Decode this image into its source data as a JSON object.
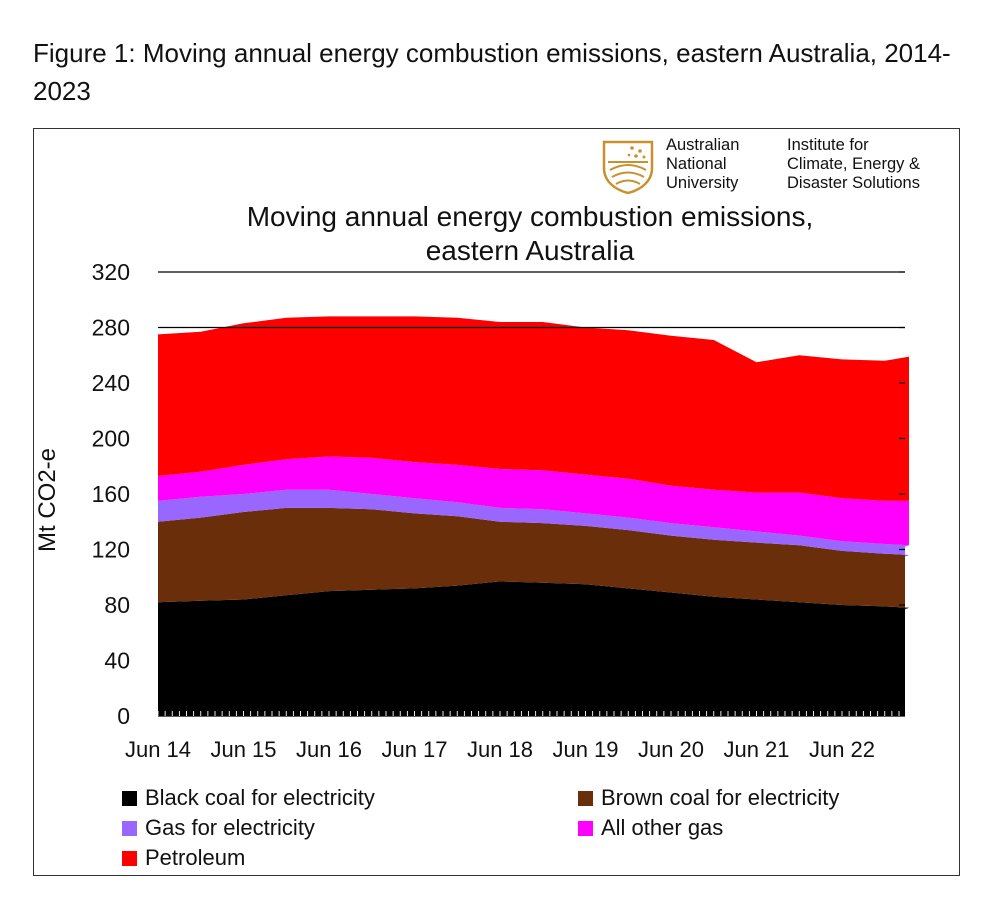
{
  "figure_caption": "Figure 1: Moving annual energy combustion emissions, eastern Australia, 2014-2023",
  "logos": {
    "anu_name": [
      "Australian",
      "National",
      "University"
    ],
    "icds_name": [
      "Institute for",
      "Climate, Energy &",
      "Disaster Solutions"
    ]
  },
  "chart_data": {
    "type": "area",
    "stacked": true,
    "title_lines": [
      "Moving annual energy combustion emissions,",
      "eastern Australia"
    ],
    "ylabel": "Mt CO2-e",
    "ylim": [
      0,
      320
    ],
    "yticks": [
      0,
      40,
      80,
      120,
      160,
      200,
      240,
      280,
      320
    ],
    "xticks": [
      "Jun 14",
      "Jun 15",
      "Jun 16",
      "Jun 17",
      "Jun 18",
      "Jun 19",
      "Jun 20",
      "Jun 21",
      "Jun 22"
    ],
    "grid_major_y": [
      280,
      320
    ],
    "legend_placement": "bottom",
    "x": [
      "Jun 14",
      "Dec 14",
      "Jun 15",
      "Dec 15",
      "Jun 16",
      "Dec 16",
      "Jun 17",
      "Dec 17",
      "Jun 18",
      "Dec 18",
      "Jun 19",
      "Dec 19",
      "Jun 20",
      "Dec 20",
      "Jun 21",
      "Dec 21",
      "Jun 22",
      "Dec 22",
      "Feb 23",
      "Mar 23"
    ],
    "series": [
      {
        "name": "Black coal for electricity",
        "color": "#000000",
        "values": [
          82,
          83,
          84,
          87,
          90,
          91,
          92,
          94,
          97,
          96,
          95,
          92,
          89,
          86,
          84,
          82,
          80,
          79,
          78,
          77
        ]
      },
      {
        "name": "Brown coal for electricity",
        "color": "#6b2e0a",
        "values": [
          58,
          60,
          63,
          63,
          60,
          58,
          54,
          50,
          43,
          43,
          42,
          42,
          41,
          41,
          41,
          41,
          39,
          38,
          38,
          38
        ]
      },
      {
        "name": "Gas for electricity",
        "color": "#9966ff",
        "values": [
          15,
          15,
          13,
          13,
          13,
          11,
          11,
          10,
          10,
          10,
          9,
          9,
          9,
          9,
          8,
          7,
          7,
          7,
          7,
          7
        ]
      },
      {
        "name": "All other gas",
        "color": "#ff00ff",
        "values": [
          18,
          18,
          21,
          22,
          24,
          26,
          26,
          27,
          28,
          28,
          28,
          28,
          27,
          27,
          28,
          31,
          31,
          31,
          32,
          null
        ]
      },
      {
        "name": "Petroleum",
        "color": "#ff0000",
        "values": [
          102,
          101,
          102,
          102,
          101,
          102,
          105,
          106,
          106,
          107,
          106,
          107,
          108,
          108,
          94,
          99,
          100,
          101,
          104,
          null
        ]
      }
    ]
  }
}
